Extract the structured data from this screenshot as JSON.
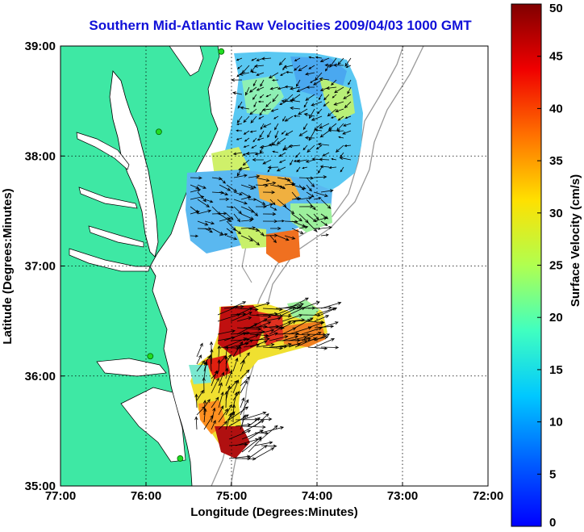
{
  "title": "Southern Mid-Atlantic Raw Velocities 2009/04/03 1000 GMT",
  "map": {
    "xlabel": "Longitude (Degrees:Minutes)",
    "ylabel": "Latitude (Degrees:Minutes)",
    "lon_range": [
      -77,
      -72
    ],
    "lat_range": [
      35,
      39
    ],
    "x_ticks": [
      {
        "value": -77,
        "label": "77:00"
      },
      {
        "value": -76,
        "label": "76:00"
      },
      {
        "value": -75,
        "label": "75:00"
      },
      {
        "value": -74,
        "label": "74:00"
      },
      {
        "value": -73,
        "label": "73:00"
      },
      {
        "value": -72,
        "label": "72:00"
      }
    ],
    "y_ticks": [
      {
        "value": 35,
        "label": "35:00"
      },
      {
        "value": 36,
        "label": "36:00"
      },
      {
        "value": 37,
        "label": "37:00"
      },
      {
        "value": 38,
        "label": "38:00"
      },
      {
        "value": 39,
        "label": "39:00"
      }
    ],
    "grid": "dotted",
    "land_color": "#3ee8a4",
    "sea_color": "#ffffff",
    "station_color": "#22dd22",
    "stations": [
      {
        "lon": -75.12,
        "lat": 38.95
      },
      {
        "lon": -75.85,
        "lat": 38.22
      },
      {
        "lon": -75.95,
        "lat": 36.18
      },
      {
        "lon": -75.6,
        "lat": 35.25
      }
    ]
  },
  "colorbar": {
    "label": "Surface Velocity (cm/s)",
    "min": 0,
    "max": 50,
    "ticks": [
      {
        "value": 0,
        "label": "0"
      },
      {
        "value": 5,
        "label": "5"
      },
      {
        "value": 10,
        "label": "10"
      },
      {
        "value": 15,
        "label": "15"
      },
      {
        "value": 20,
        "label": "20"
      },
      {
        "value": 25,
        "label": "25"
      },
      {
        "value": 30,
        "label": "30"
      },
      {
        "value": 35,
        "label": "35"
      },
      {
        "value": 40,
        "label": "40"
      },
      {
        "value": 45,
        "label": "45"
      },
      {
        "value": 50,
        "label": "50"
      }
    ]
  }
}
